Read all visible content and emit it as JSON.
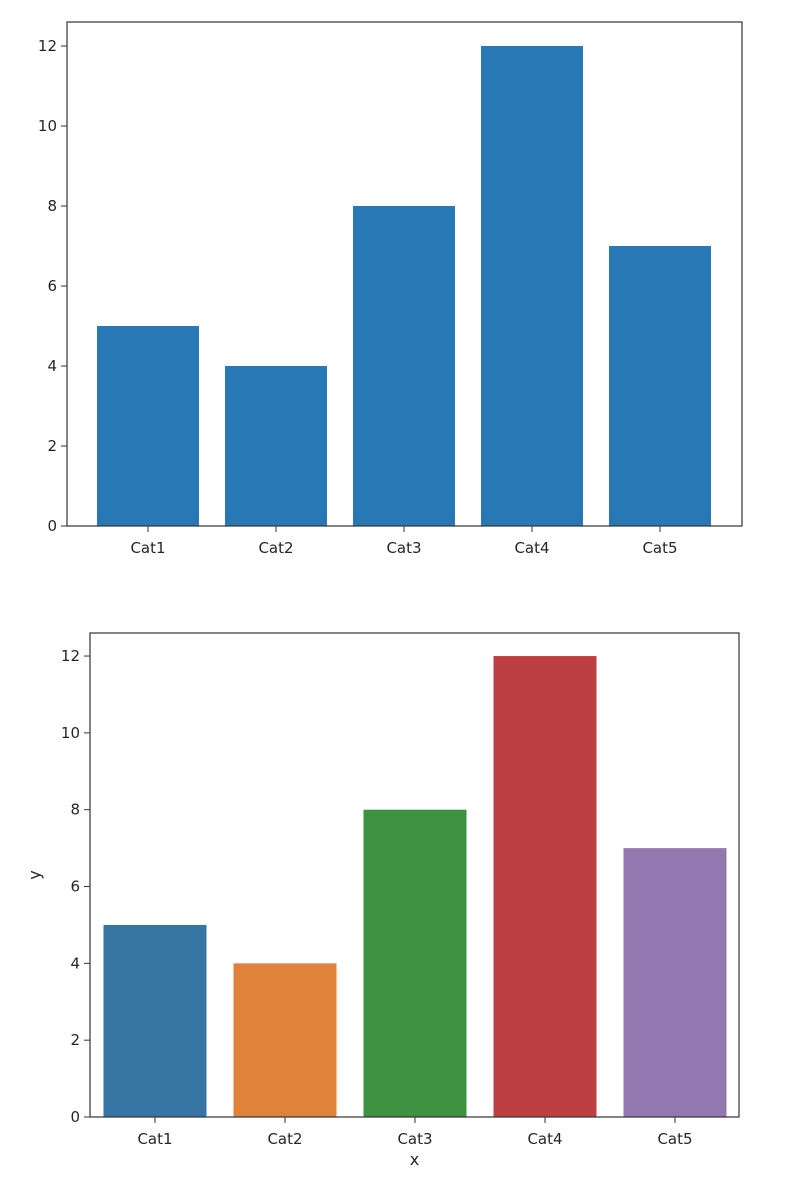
{
  "chart_data": [
    {
      "type": "bar",
      "categories": [
        "Cat1",
        "Cat2",
        "Cat3",
        "Cat4",
        "Cat5"
      ],
      "values": [
        5,
        4,
        8,
        12,
        7
      ],
      "title": "",
      "xlabel": "",
      "ylabel": "",
      "ylim": [
        0,
        12.6
      ],
      "yticks": [
        0,
        2,
        4,
        6,
        8,
        10,
        12
      ],
      "grid": false,
      "colors": [
        "#2878b5",
        "#2878b5",
        "#2878b5",
        "#2878b5",
        "#2878b5"
      ]
    },
    {
      "type": "bar",
      "categories": [
        "Cat1",
        "Cat2",
        "Cat3",
        "Cat4",
        "Cat5"
      ],
      "values": [
        5,
        4,
        8,
        12,
        7
      ],
      "title": "",
      "xlabel": "x",
      "ylabel": "y",
      "ylim": [
        0,
        12.6
      ],
      "yticks": [
        0,
        2,
        4,
        6,
        8,
        10,
        12
      ],
      "grid": false,
      "colors": [
        "#3775a4",
        "#e0823a",
        "#3d913f",
        "#bd3f42",
        "#9277b1"
      ]
    }
  ]
}
